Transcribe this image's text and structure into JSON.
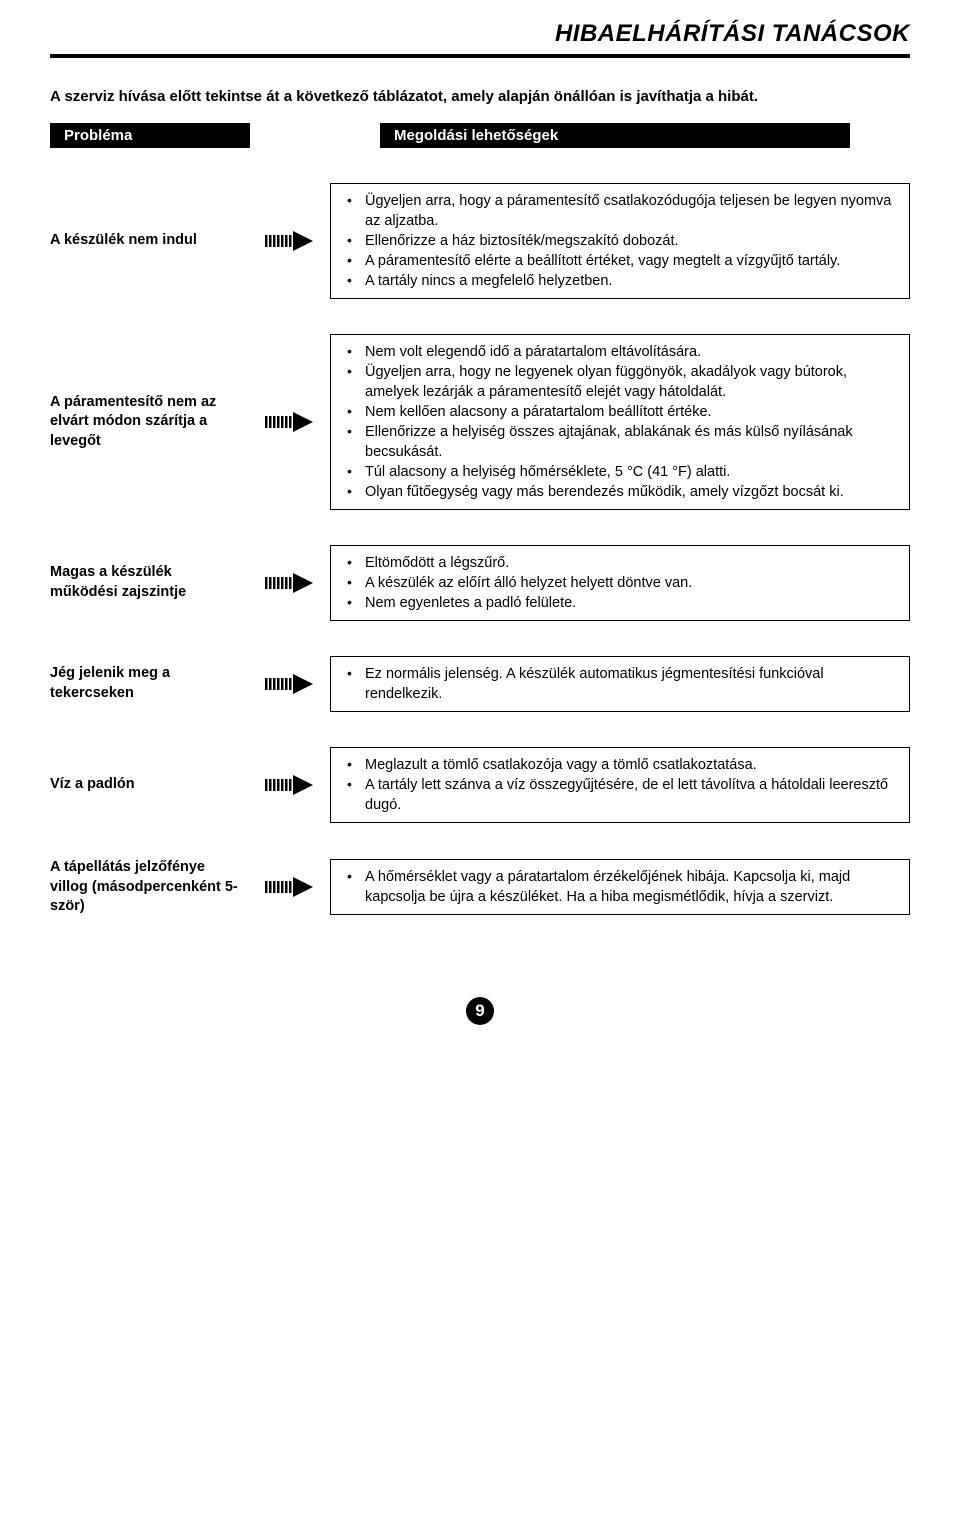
{
  "page_title": "HIBAELHÁRÍTÁSI TANÁCSOK",
  "intro": "A szerviz hívása előtt tekintse át a következő táblázatot, amely alapján önállóan is javíthatja a hibát.",
  "headers": {
    "problem": "Probléma",
    "solution": "Megoldási lehetőségek"
  },
  "rows": [
    {
      "problem": "A készülék nem indul",
      "solutions": [
        "Ügyeljen arra, hogy a páramentesítő csatlakozódugója teljesen be legyen nyomva az aljzatba.",
        "Ellenőrizze a ház biztosíték/megszakító dobozát.",
        "A páramentesítő elérte a beállított értéket, vagy megtelt a vízgyűjtő tartály.",
        "A tartály nincs a megfelelő helyzetben."
      ]
    },
    {
      "problem": "A páramentesítő nem az elvárt módon szárítja a levegőt",
      "solutions": [
        "Nem volt elegendő idő a páratartalom eltávolítására.",
        "Ügyeljen arra, hogy ne legyenek olyan függönyök, akadályok vagy bútorok, amelyek lezárják a páramentesítő elejét vagy hátoldalát.",
        "Nem kellően alacsony a páratartalom beállított értéke.",
        "Ellenőrizze a helyiség összes ajtajának, ablakának és más külső nyílásának becsukását.",
        "Túl alacsony a helyiség hőmérséklete, 5 °C (41 °F) alatti.",
        "Olyan fűtőegység vagy más berendezés működik, amely vízgőzt bocsát ki."
      ]
    },
    {
      "problem": "Magas a készülék működési zajszintje",
      "solutions": [
        "Eltömődött a légszűrő.",
        "A készülék az előírt álló helyzet helyett döntve van.",
        "Nem egyenletes a padló felülete."
      ]
    },
    {
      "problem": "Jég jelenik meg a tekercseken",
      "solutions": [
        "Ez normális jelenség. A készülék automatikus jégmentesítési funkcióval rendelkezik."
      ]
    },
    {
      "problem": "Víz a padlón",
      "solutions": [
        "Meglazult a tömlő csatlakozója vagy a tömlő csatlakoztatása.",
        "A tartály lett szánva a víz összegyűjtésére, de el lett távolítva a hátoldali leeresztő dugó."
      ]
    },
    {
      "problem": "A tápellátás jelzőfénye villog (másodpercenként 5-ször)",
      "solutions": [
        "A hőmérséklet vagy a páratartalom érzékelőjének hibája. Kapcsolja ki, majd kapcsolja be újra a készüléket. Ha a hiba megismétlődik, hívja a szervizt."
      ]
    }
  ],
  "page_number": "9",
  "colors": {
    "text": "#000000",
    "bg": "#ffffff",
    "header_bg": "#000000",
    "header_text": "#ffffff"
  }
}
